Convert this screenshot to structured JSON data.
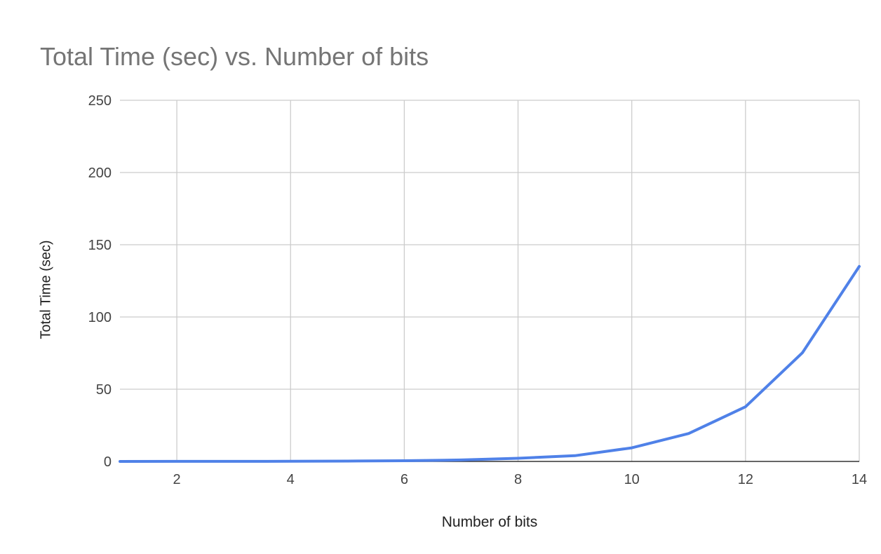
{
  "chart_data": {
    "type": "line",
    "title": "Total Time (sec) vs. Number of bits",
    "xlabel": "Number of bits",
    "ylabel": "Total Time (sec)",
    "xlim": [
      1,
      14
    ],
    "ylim": [
      0,
      250
    ],
    "x_ticks": [
      2,
      4,
      6,
      8,
      10,
      12,
      14
    ],
    "y_ticks": [
      0,
      50,
      100,
      150,
      200,
      250
    ],
    "grid": true,
    "legend": "none",
    "series": [
      {
        "color": "#4f81e8",
        "x": [
          1,
          2,
          3,
          4,
          5,
          6,
          7,
          8,
          9,
          10,
          11,
          12,
          13,
          14
        ],
        "y": [
          0.02,
          0.03,
          0.06,
          0.12,
          0.25,
          0.5,
          1.0,
          2.2,
          4.0,
          9.4,
          19.3,
          37.8,
          75.2,
          135.0
        ]
      }
    ]
  }
}
